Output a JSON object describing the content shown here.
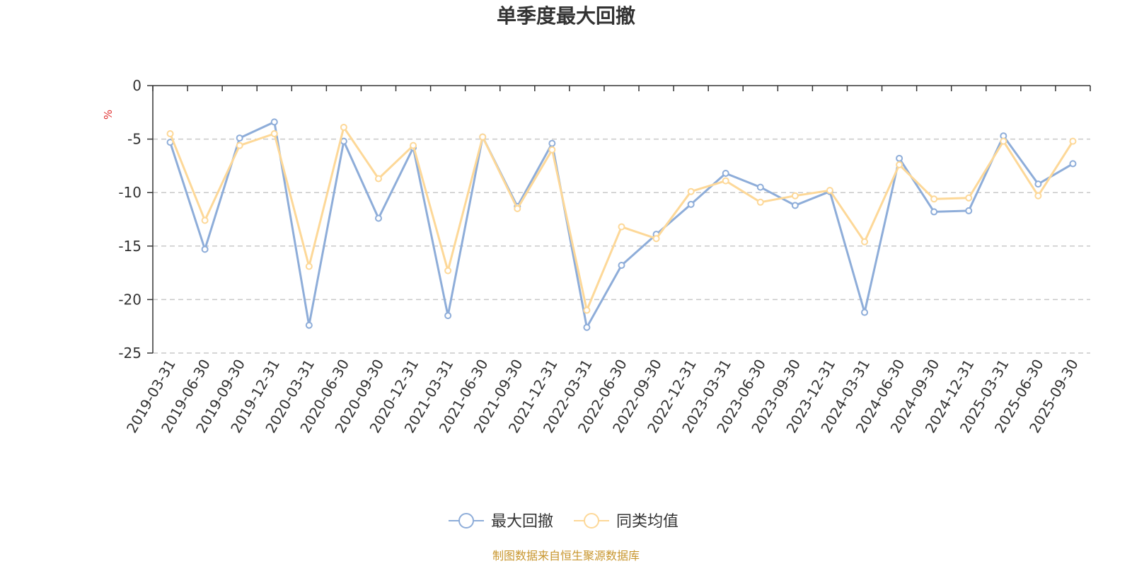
{
  "chart_data": {
    "type": "line",
    "title": "单季度最大回撤",
    "ylabel": "%",
    "ylim": [
      -25,
      0
    ],
    "yticks": [
      0,
      -5,
      -10,
      -15,
      -20,
      -25
    ],
    "grid": true,
    "legend_position": "bottom-center",
    "categories": [
      "2019-03-31",
      "2019-06-30",
      "2019-09-30",
      "2019-12-31",
      "2020-03-31",
      "2020-06-30",
      "2020-09-30",
      "2020-12-31",
      "2021-03-31",
      "2021-06-30",
      "2021-09-30",
      "2021-12-31",
      "2022-03-31",
      "2022-06-30",
      "2022-09-30",
      "2022-12-31",
      "2023-03-31",
      "2023-06-30",
      "2023-09-30",
      "2023-12-31",
      "2024-03-31",
      "2024-06-30",
      "2024-09-30",
      "2024-12-31",
      "2025-03-31",
      "2025-06-30",
      "2025-09-30"
    ],
    "series": [
      {
        "name": "最大回撤",
        "color": "#8eadd9",
        "values": [
          -5.3,
          -15.3,
          -4.9,
          -3.4,
          -22.4,
          -5.2,
          -12.4,
          -5.8,
          -21.5,
          -4.8,
          -11.3,
          -5.4,
          -22.6,
          -16.8,
          -13.9,
          -11.1,
          -8.2,
          -9.5,
          -11.2,
          -9.9,
          -21.2,
          -6.8,
          -11.8,
          -11.7,
          -4.7,
          -9.2,
          -7.3
        ]
      },
      {
        "name": "同类均值",
        "color": "#fdd898",
        "values": [
          -4.5,
          -12.6,
          -5.6,
          -4.5,
          -16.9,
          -3.9,
          -8.7,
          -5.6,
          -17.3,
          -4.8,
          -11.5,
          -6.0,
          -21.0,
          -13.2,
          -14.3,
          -9.9,
          -8.9,
          -10.9,
          -10.3,
          -9.8,
          -14.6,
          -7.4,
          -10.6,
          -10.5,
          -5.2,
          -10.3,
          -5.2
        ]
      }
    ]
  },
  "source_note": "制图数据来自恒生聚源数据库"
}
